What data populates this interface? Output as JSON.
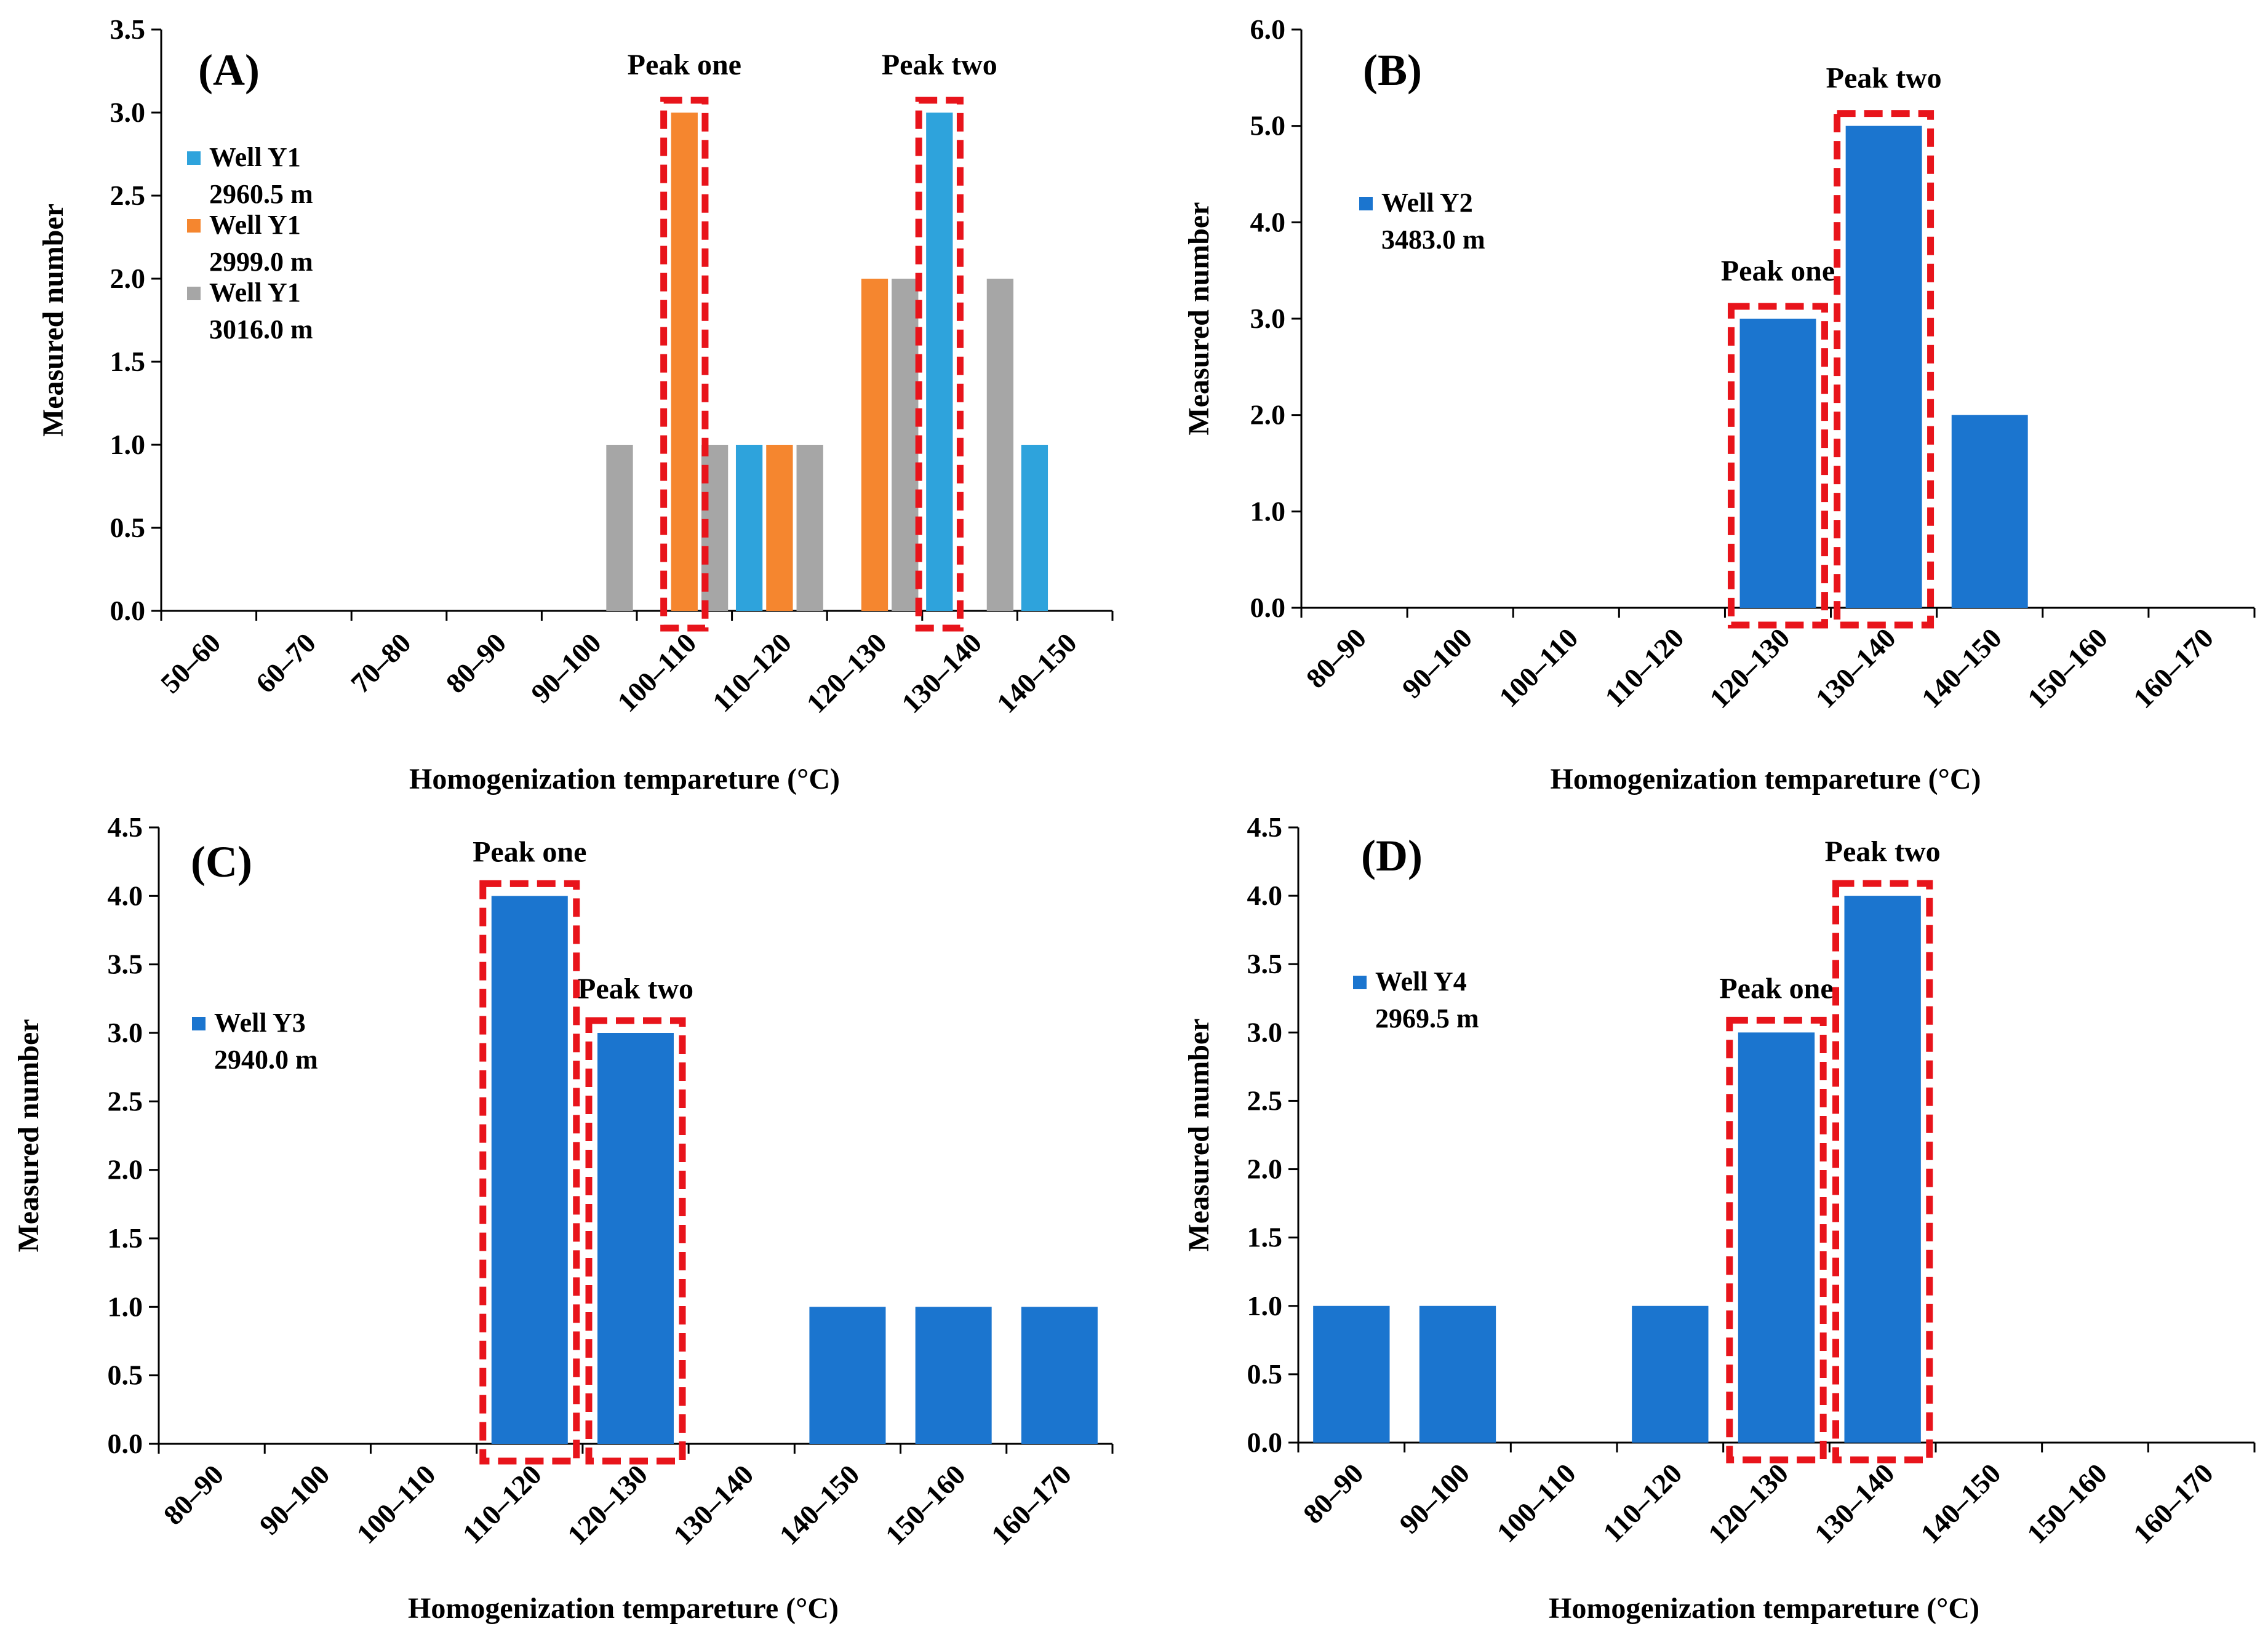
{
  "colors": {
    "blue": "#1b75cf",
    "light_blue": "#2ea3dc",
    "orange": "#f5862f",
    "gray": "#a6a6a6",
    "highlight": "#e8141b",
    "axis": "#000000"
  },
  "chart_data": [
    {
      "type": "bar",
      "panel_label": "(A)",
      "title": "",
      "xlabel": "Homogenization tempareture (°C)",
      "ylabel": "Measured number",
      "ylim": [
        0,
        3.5
      ],
      "ytick_step": 0.5,
      "ytick_labels": [
        "0.0",
        "0.5",
        "1.0",
        "1.5",
        "2.0",
        "2.5",
        "3.0",
        "3.5"
      ],
      "categories": [
        "50–60",
        "60–70",
        "70–80",
        "80–90",
        "90–100",
        "100–110",
        "110–120",
        "120–130",
        "130–140",
        "140–150"
      ],
      "series": [
        {
          "name": "Well Y1 2960.5 m",
          "legend": [
            "Well Y1",
            "2960.5 m"
          ],
          "color": "#2ea3dc",
          "values": [
            0,
            0,
            0,
            0,
            0,
            0,
            1,
            0,
            3,
            1
          ]
        },
        {
          "name": "Well Y1 2999.0 m",
          "legend": [
            "Well Y1",
            "2999.0 m"
          ],
          "color": "#f5862f",
          "values": [
            0,
            0,
            0,
            0,
            0,
            3,
            1,
            2,
            0,
            0
          ]
        },
        {
          "name": "Well Y1 3016.0 m",
          "legend": [
            "Well Y1",
            "3016.0 m"
          ],
          "color": "#a6a6a6",
          "values": [
            0,
            0,
            0,
            0,
            1,
            1,
            1,
            2,
            2,
            0
          ]
        }
      ],
      "peaks": [
        {
          "label": "Peak one",
          "category": "100–110"
        },
        {
          "label": "Peak two",
          "category": "130–140"
        }
      ]
    },
    {
      "type": "bar",
      "panel_label": "(B)",
      "title": "",
      "xlabel": "Homogenization tempareture (°C)",
      "ylabel": "Measured number",
      "ylim": [
        0,
        6.0
      ],
      "ytick_step": 1.0,
      "ytick_labels": [
        "0.0",
        "1.0",
        "2.0",
        "3.0",
        "4.0",
        "5.0",
        "6.0"
      ],
      "categories": [
        "80–90",
        "90–100",
        "100–110",
        "110–120",
        "120–130",
        "130–140",
        "140–150",
        "150–160",
        "160–170"
      ],
      "series": [
        {
          "name": "Well Y2 3483.0 m",
          "legend": [
            "Well Y2",
            "3483.0 m"
          ],
          "color": "#1b75cf",
          "values": [
            0,
            0,
            0,
            0,
            3,
            5,
            2,
            0,
            0
          ]
        }
      ],
      "peaks": [
        {
          "label": "Peak one",
          "category": "120–130"
        },
        {
          "label": "Peak two",
          "category": "130–140"
        }
      ]
    },
    {
      "type": "bar",
      "panel_label": "(C)",
      "title": "",
      "xlabel": "Homogenization tempareture (°C)",
      "ylabel": "Measured number",
      "ylim": [
        0,
        4.5
      ],
      "ytick_step": 0.5,
      "ytick_labels": [
        "0.0",
        "0.5",
        "1.0",
        "1.5",
        "2.0",
        "2.5",
        "3.0",
        "3.5",
        "4.0",
        "4.5"
      ],
      "categories": [
        "80–90",
        "90–100",
        "100–110",
        "110–120",
        "120–130",
        "130–140",
        "140–150",
        "150–160",
        "160–170"
      ],
      "series": [
        {
          "name": "Well Y3 2940.0 m",
          "legend": [
            "Well Y3",
            "2940.0 m"
          ],
          "color": "#1b75cf",
          "values": [
            0,
            0,
            0,
            4,
            3,
            0,
            1,
            1,
            1
          ]
        }
      ],
      "peaks": [
        {
          "label": "Peak one",
          "category": "110–120"
        },
        {
          "label": "Peak two",
          "category": "120–130"
        }
      ]
    },
    {
      "type": "bar",
      "panel_label": "(D)",
      "title": "",
      "xlabel": "Homogenization tempareture (°C)",
      "ylabel": "Measured number",
      "ylim": [
        0,
        4.5
      ],
      "ytick_step": 0.5,
      "ytick_labels": [
        "0.0",
        "0.5",
        "1.0",
        "1.5",
        "2.0",
        "2.5",
        "3.0",
        "3.5",
        "4.0",
        "4.5"
      ],
      "categories": [
        "80–90",
        "90–100",
        "100–110",
        "110–120",
        "120–130",
        "130–140",
        "140–150",
        "150–160",
        "160–170"
      ],
      "series": [
        {
          "name": "Well Y4 2969.5 m",
          "legend": [
            "Well Y4",
            "2969.5 m"
          ],
          "color": "#1b75cf",
          "values": [
            1,
            1,
            0,
            1,
            3,
            4,
            0,
            0,
            0
          ]
        }
      ],
      "peaks": [
        {
          "label": "Peak one",
          "category": "120–130"
        },
        {
          "label": "Peak two",
          "category": "130–140"
        }
      ]
    }
  ]
}
